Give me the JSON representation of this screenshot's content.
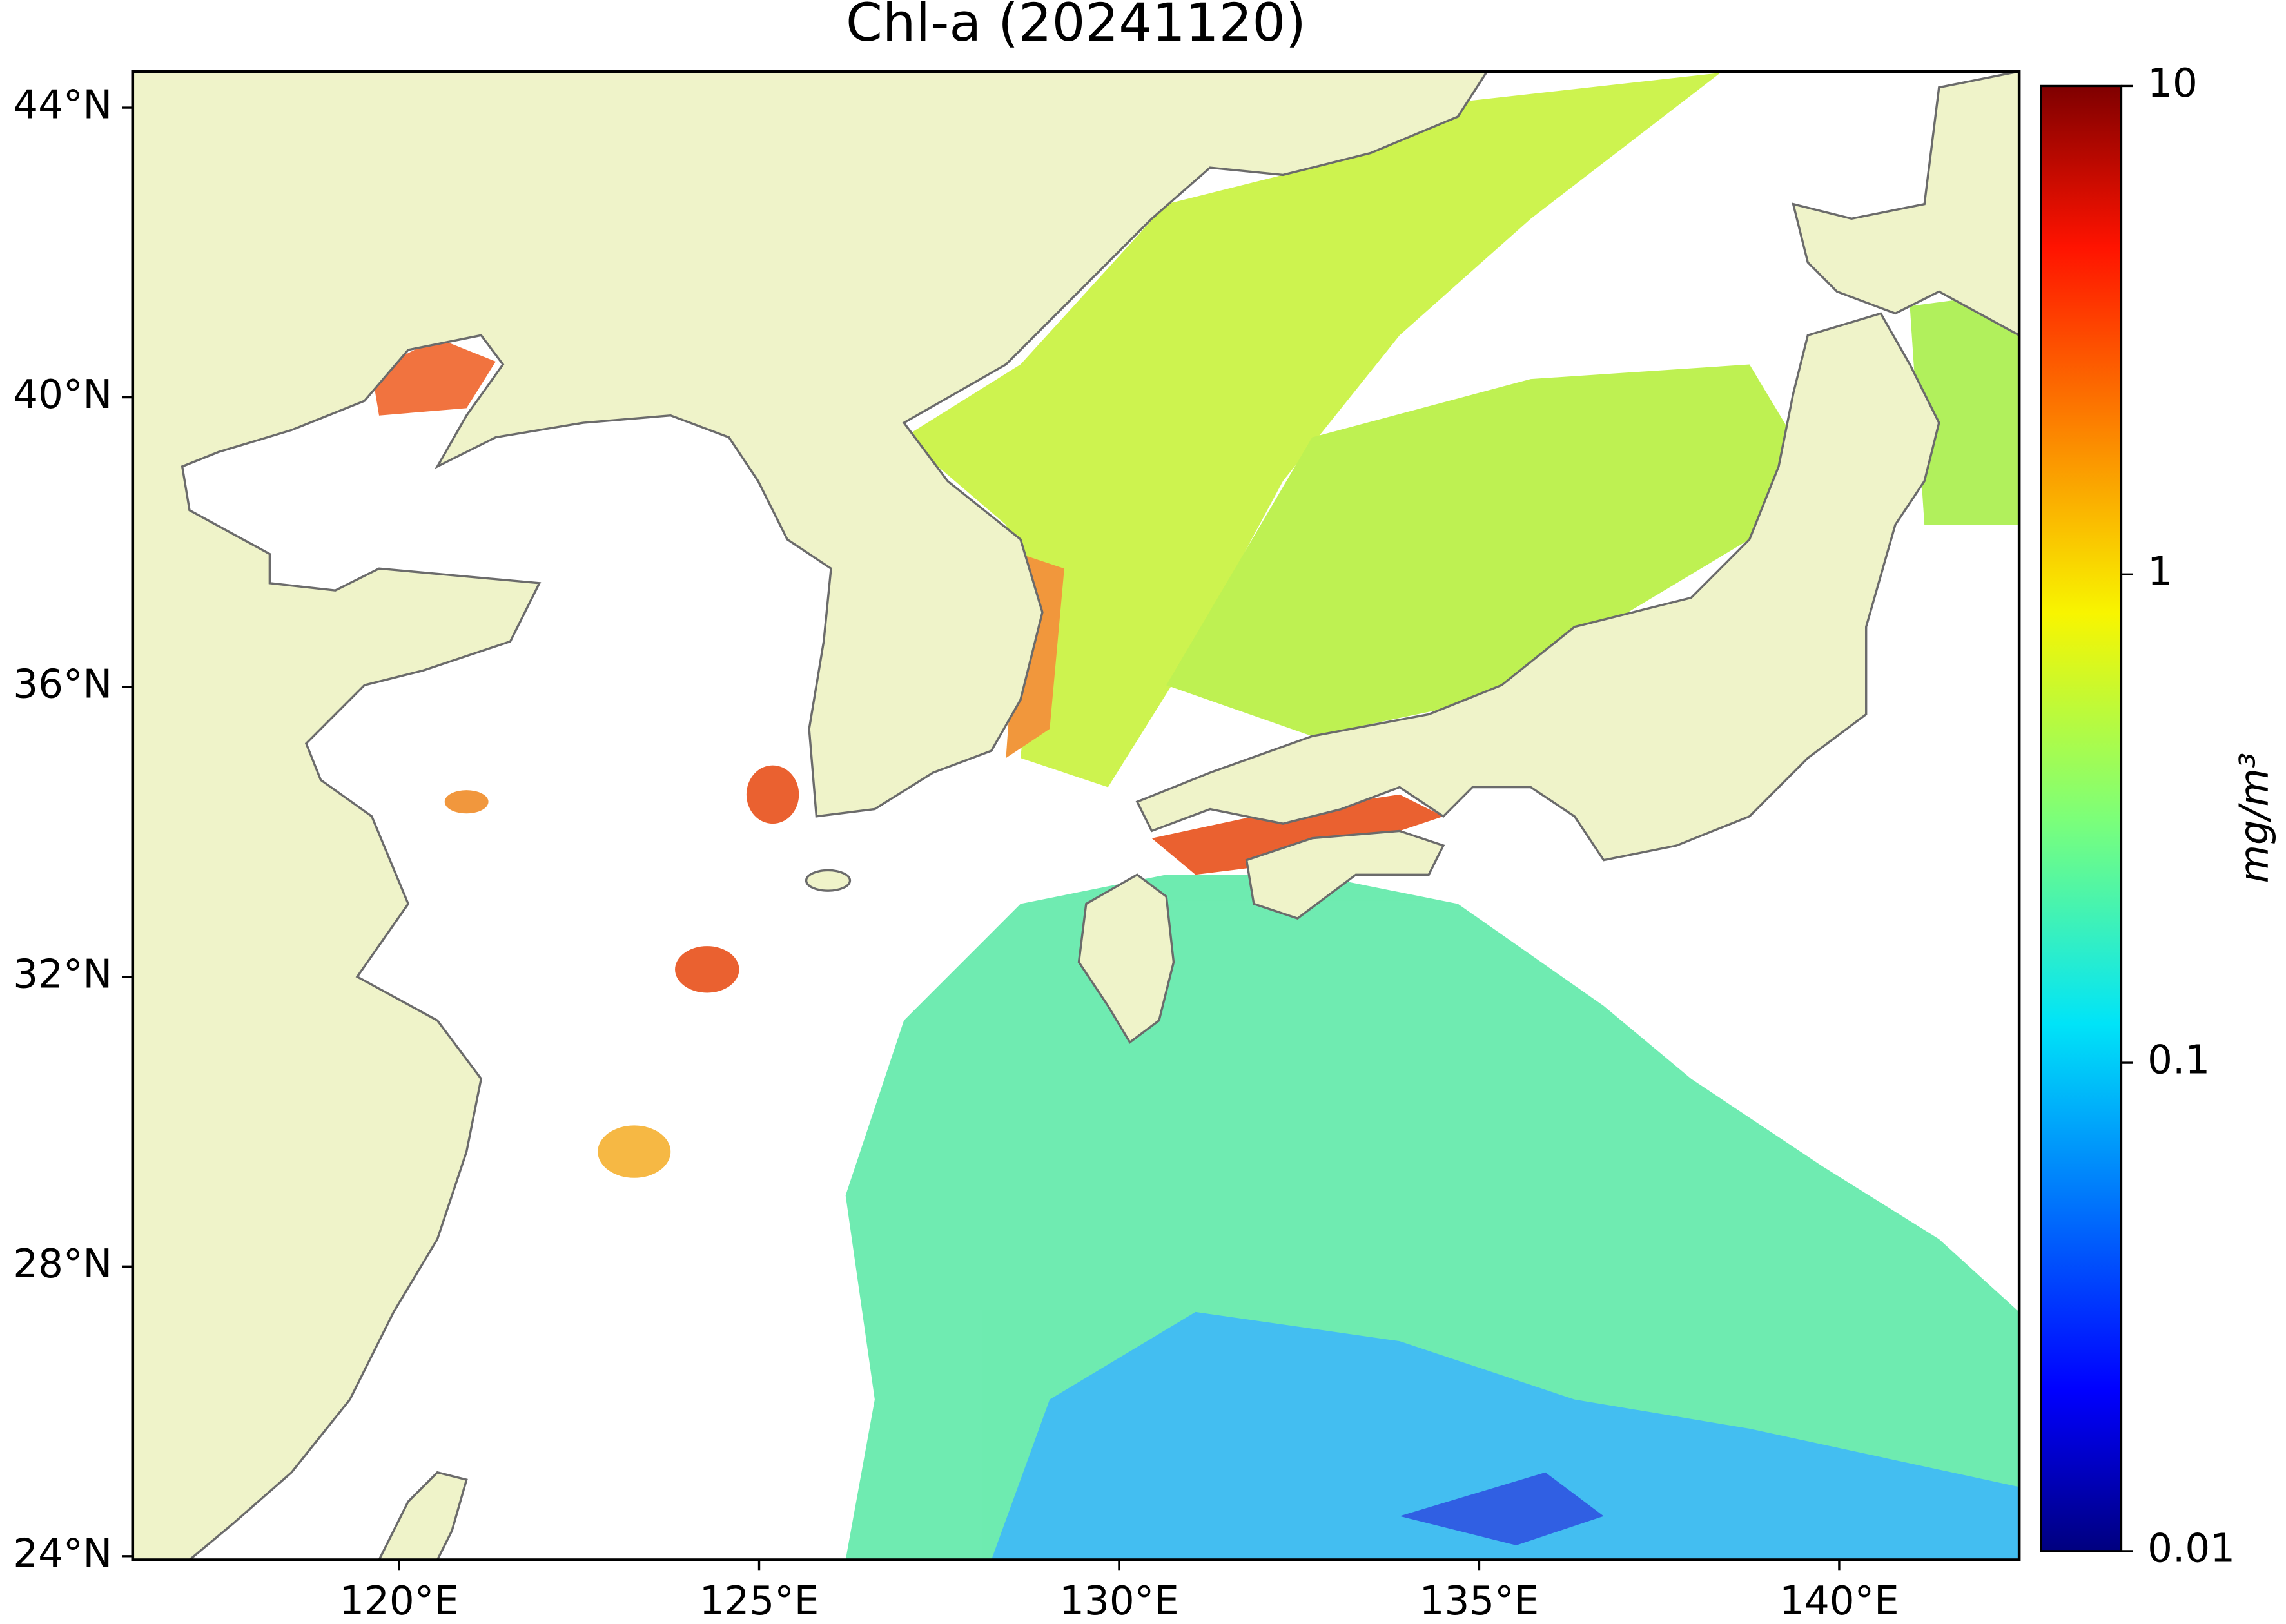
{
  "chart_data": {
    "type": "map",
    "title": "Chl-a (20241120)",
    "xlim": [
      116.3,
      142.5
    ],
    "ylim": [
      23.95,
      44.5
    ],
    "xticks": [
      {
        "value": 120,
        "label": "120°E"
      },
      {
        "value": 125,
        "label": "125°E"
      },
      {
        "value": 130,
        "label": "130°E"
      },
      {
        "value": 135,
        "label": "135°E"
      },
      {
        "value": 140,
        "label": "140°E"
      }
    ],
    "yticks": [
      {
        "value": 24,
        "label": "24°N"
      },
      {
        "value": 28,
        "label": "28°N"
      },
      {
        "value": 32,
        "label": "32°N"
      },
      {
        "value": 36,
        "label": "36°N"
      },
      {
        "value": 40,
        "label": "40°N"
      },
      {
        "value": 44,
        "label": "44°N"
      }
    ],
    "colorbar": {
      "label": "mg/m³",
      "scale": "log",
      "lim": [
        0.01,
        10
      ],
      "ticks": [
        0.01,
        0.1,
        1,
        10
      ],
      "colormap": "jet"
    }
  }
}
